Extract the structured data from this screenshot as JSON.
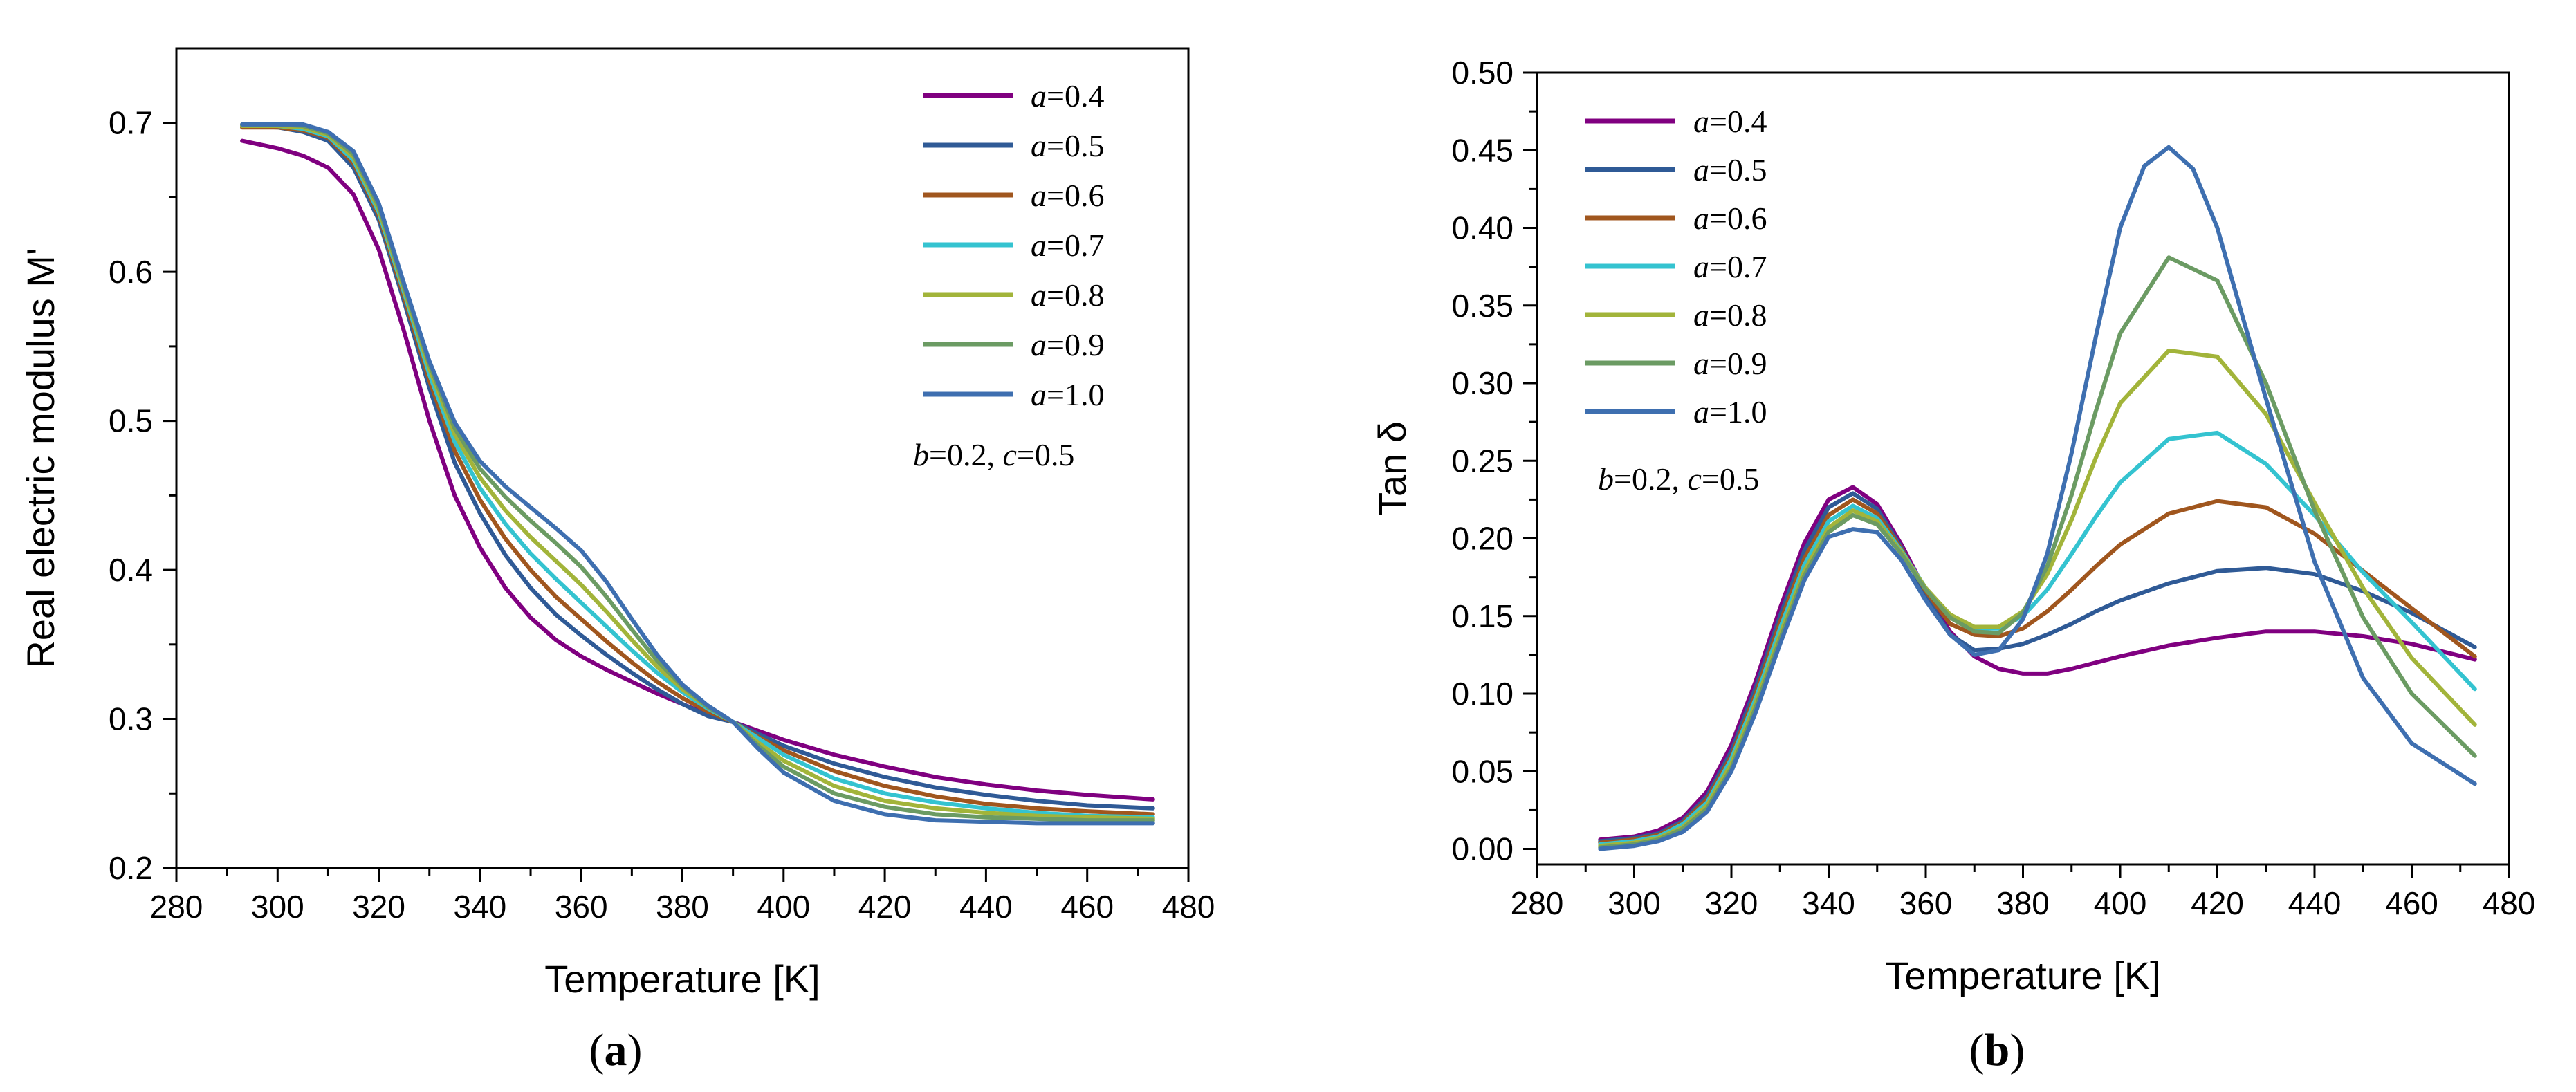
{
  "chart_data": [
    {
      "type": "line",
      "panel_label": "(a)",
      "panel_letter": "a",
      "xlabel": "Temperature [K]",
      "ylabel": "Real electric modulus M'",
      "xlim": [
        280,
        480
      ],
      "ylim": [
        0.2,
        0.75
      ],
      "xticks": [
        280,
        300,
        320,
        340,
        360,
        380,
        400,
        420,
        440,
        460,
        480
      ],
      "yticks": [
        0.2,
        0.3,
        0.4,
        0.5,
        0.6,
        0.7
      ],
      "ytick_labels": [
        "0.2",
        "0.3",
        "0.4",
        "0.5",
        "0.6",
        "0.7"
      ],
      "legend_position": "top-right",
      "legend_prefix": "a",
      "annotation": {
        "b": "0.2",
        "c": "0.5"
      },
      "series": [
        {
          "name": "a=0.4",
          "label": "0.4",
          "color": "#800080",
          "x": [
            293,
            300,
            305,
            310,
            315,
            320,
            325,
            330,
            335,
            340,
            345,
            350,
            355,
            360,
            365,
            370,
            375,
            380,
            385,
            390,
            395,
            400,
            410,
            420,
            430,
            440,
            450,
            460,
            473
          ],
          "y": [
            0.688,
            0.683,
            0.678,
            0.67,
            0.652,
            0.615,
            0.56,
            0.5,
            0.45,
            0.415,
            0.388,
            0.368,
            0.353,
            0.342,
            0.333,
            0.325,
            0.317,
            0.31,
            0.303,
            0.298,
            0.292,
            0.286,
            0.276,
            0.268,
            0.261,
            0.256,
            0.252,
            0.249,
            0.246
          ]
        },
        {
          "name": "a=0.5",
          "label": "0.5",
          "color": "#2f5a96",
          "x": [
            293,
            300,
            305,
            310,
            315,
            320,
            325,
            330,
            335,
            340,
            345,
            350,
            355,
            360,
            365,
            370,
            375,
            380,
            385,
            390,
            395,
            400,
            410,
            420,
            430,
            440,
            450,
            460,
            473
          ],
          "y": [
            0.698,
            0.697,
            0.694,
            0.688,
            0.67,
            0.635,
            0.58,
            0.522,
            0.472,
            0.438,
            0.41,
            0.388,
            0.37,
            0.356,
            0.343,
            0.331,
            0.32,
            0.31,
            0.302,
            0.298,
            0.29,
            0.282,
            0.27,
            0.261,
            0.254,
            0.249,
            0.245,
            0.242,
            0.24
          ]
        },
        {
          "name": "a=0.6",
          "label": "0.6",
          "color": "#a0561e",
          "x": [
            293,
            300,
            305,
            310,
            315,
            320,
            325,
            330,
            335,
            340,
            345,
            350,
            355,
            360,
            365,
            370,
            375,
            380,
            385,
            390,
            395,
            400,
            410,
            420,
            430,
            440,
            450,
            460,
            473
          ],
          "y": [
            0.697,
            0.697,
            0.695,
            0.69,
            0.673,
            0.638,
            0.583,
            0.527,
            0.48,
            0.447,
            0.421,
            0.4,
            0.382,
            0.367,
            0.352,
            0.338,
            0.325,
            0.314,
            0.305,
            0.298,
            0.288,
            0.279,
            0.265,
            0.255,
            0.248,
            0.243,
            0.24,
            0.238,
            0.236
          ]
        },
        {
          "name": "a=0.7",
          "label": "0.7",
          "color": "#34c3d0",
          "x": [
            293,
            300,
            305,
            310,
            315,
            320,
            325,
            330,
            335,
            340,
            345,
            350,
            355,
            360,
            365,
            370,
            375,
            380,
            385,
            390,
            395,
            400,
            410,
            420,
            430,
            440,
            450,
            460,
            473
          ],
          "y": [
            0.698,
            0.698,
            0.696,
            0.691,
            0.675,
            0.64,
            0.586,
            0.531,
            0.486,
            0.455,
            0.431,
            0.411,
            0.394,
            0.378,
            0.362,
            0.346,
            0.331,
            0.318,
            0.307,
            0.298,
            0.287,
            0.276,
            0.26,
            0.25,
            0.244,
            0.24,
            0.237,
            0.235,
            0.234
          ]
        },
        {
          "name": "a=0.8",
          "label": "0.8",
          "color": "#a2b43a",
          "x": [
            293,
            300,
            305,
            310,
            315,
            320,
            325,
            330,
            335,
            340,
            345,
            350,
            355,
            360,
            365,
            370,
            375,
            380,
            385,
            390,
            395,
            400,
            410,
            420,
            430,
            440,
            450,
            460,
            473
          ],
          "y": [
            0.698,
            0.698,
            0.697,
            0.692,
            0.677,
            0.642,
            0.588,
            0.535,
            0.491,
            0.462,
            0.44,
            0.422,
            0.406,
            0.39,
            0.372,
            0.353,
            0.335,
            0.32,
            0.308,
            0.298,
            0.284,
            0.272,
            0.255,
            0.245,
            0.24,
            0.237,
            0.235,
            0.234,
            0.233
          ]
        },
        {
          "name": "a=0.9",
          "label": "0.9",
          "color": "#6b9b63",
          "x": [
            293,
            300,
            305,
            310,
            315,
            320,
            325,
            330,
            335,
            340,
            345,
            350,
            355,
            360,
            365,
            370,
            375,
            380,
            385,
            390,
            395,
            400,
            410,
            420,
            430,
            440,
            450,
            460,
            473
          ],
          "y": [
            0.699,
            0.699,
            0.698,
            0.693,
            0.679,
            0.644,
            0.59,
            0.538,
            0.495,
            0.468,
            0.449,
            0.433,
            0.418,
            0.402,
            0.382,
            0.36,
            0.339,
            0.322,
            0.308,
            0.298,
            0.282,
            0.268,
            0.25,
            0.241,
            0.236,
            0.234,
            0.233,
            0.232,
            0.232
          ]
        },
        {
          "name": "a=1.0",
          "label": "1.0",
          "color": "#3e6fb0",
          "x": [
            293,
            300,
            305,
            310,
            315,
            320,
            325,
            330,
            335,
            340,
            345,
            350,
            355,
            360,
            365,
            370,
            375,
            380,
            385,
            390,
            395,
            400,
            410,
            420,
            430,
            440,
            450,
            460,
            473
          ],
          "y": [
            0.699,
            0.699,
            0.699,
            0.694,
            0.681,
            0.646,
            0.592,
            0.54,
            0.499,
            0.473,
            0.456,
            0.442,
            0.428,
            0.413,
            0.392,
            0.367,
            0.343,
            0.323,
            0.309,
            0.298,
            0.28,
            0.264,
            0.245,
            0.236,
            0.232,
            0.231,
            0.23,
            0.23,
            0.23
          ]
        }
      ]
    },
    {
      "type": "line",
      "panel_label": "(b)",
      "panel_letter": "b",
      "xlabel": "Temperature [K]",
      "ylabel": "Tan δ",
      "xlim": [
        280,
        480
      ],
      "ylim": [
        -0.01,
        0.5
      ],
      "xticks": [
        280,
        300,
        320,
        340,
        360,
        380,
        400,
        420,
        440,
        460,
        480
      ],
      "yticks": [
        0.0,
        0.05,
        0.1,
        0.15,
        0.2,
        0.25,
        0.3,
        0.35,
        0.4,
        0.45,
        0.5
      ],
      "ytick_labels": [
        "0.00",
        "0.05",
        "0.10",
        "0.15",
        "0.20",
        "0.25",
        "0.30",
        "0.35",
        "0.40",
        "0.45",
        "0.50"
      ],
      "legend_position": "top-left",
      "legend_prefix": "a",
      "annotation": {
        "b": "0.2",
        "c": "0.5"
      },
      "series": [
        {
          "name": "a=0.4",
          "label": "0.4",
          "color": "#800080",
          "x": [
            293,
            300,
            305,
            310,
            315,
            320,
            325,
            330,
            335,
            340,
            345,
            350,
            355,
            360,
            365,
            370,
            375,
            380,
            385,
            390,
            395,
            400,
            410,
            420,
            430,
            440,
            450,
            460,
            473
          ],
          "y": [
            0.006,
            0.008,
            0.012,
            0.02,
            0.037,
            0.067,
            0.108,
            0.155,
            0.197,
            0.225,
            0.233,
            0.222,
            0.196,
            0.166,
            0.14,
            0.124,
            0.116,
            0.113,
            0.113,
            0.116,
            0.12,
            0.124,
            0.131,
            0.136,
            0.14,
            0.14,
            0.137,
            0.132,
            0.122
          ]
        },
        {
          "name": "a=0.5",
          "label": "0.5",
          "color": "#2f5a96",
          "x": [
            293,
            300,
            305,
            310,
            315,
            320,
            325,
            330,
            335,
            340,
            345,
            350,
            355,
            360,
            365,
            370,
            375,
            380,
            385,
            390,
            395,
            400,
            410,
            420,
            430,
            440,
            450,
            460,
            473
          ],
          "y": [
            0.005,
            0.007,
            0.01,
            0.018,
            0.034,
            0.063,
            0.104,
            0.15,
            0.192,
            0.22,
            0.229,
            0.219,
            0.194,
            0.163,
            0.138,
            0.128,
            0.129,
            0.132,
            0.138,
            0.145,
            0.153,
            0.16,
            0.171,
            0.179,
            0.181,
            0.177,
            0.166,
            0.152,
            0.13
          ]
        },
        {
          "name": "a=0.6",
          "label": "0.6",
          "color": "#a0561e",
          "x": [
            293,
            300,
            305,
            310,
            315,
            320,
            325,
            330,
            335,
            340,
            345,
            350,
            355,
            360,
            365,
            370,
            375,
            380,
            385,
            390,
            395,
            400,
            410,
            420,
            430,
            440,
            450,
            460,
            473
          ],
          "y": [
            0.004,
            0.006,
            0.009,
            0.017,
            0.032,
            0.06,
            0.1,
            0.146,
            0.187,
            0.215,
            0.225,
            0.216,
            0.193,
            0.166,
            0.145,
            0.138,
            0.137,
            0.142,
            0.153,
            0.167,
            0.182,
            0.196,
            0.216,
            0.224,
            0.22,
            0.203,
            0.179,
            0.155,
            0.124
          ]
        },
        {
          "name": "a=0.7",
          "label": "0.7",
          "color": "#34c3d0",
          "x": [
            293,
            300,
            305,
            310,
            315,
            320,
            325,
            330,
            335,
            340,
            345,
            350,
            355,
            360,
            365,
            370,
            375,
            380,
            385,
            390,
            395,
            400,
            410,
            420,
            430,
            440,
            450,
            460,
            473
          ],
          "y": [
            0.003,
            0.005,
            0.008,
            0.016,
            0.03,
            0.058,
            0.097,
            0.142,
            0.183,
            0.211,
            0.221,
            0.213,
            0.192,
            0.168,
            0.15,
            0.142,
            0.142,
            0.15,
            0.167,
            0.19,
            0.214,
            0.236,
            0.264,
            0.268,
            0.248,
            0.215,
            0.178,
            0.146,
            0.103
          ]
        },
        {
          "name": "a=0.8",
          "label": "0.8",
          "color": "#a2b43a",
          "x": [
            293,
            300,
            305,
            310,
            315,
            320,
            325,
            330,
            335,
            340,
            345,
            350,
            355,
            360,
            365,
            370,
            375,
            380,
            385,
            390,
            395,
            400,
            410,
            420,
            430,
            440,
            450,
            460,
            473
          ],
          "y": [
            0.002,
            0.004,
            0.007,
            0.014,
            0.028,
            0.055,
            0.094,
            0.138,
            0.179,
            0.207,
            0.218,
            0.211,
            0.191,
            0.168,
            0.151,
            0.143,
            0.143,
            0.153,
            0.177,
            0.212,
            0.252,
            0.287,
            0.321,
            0.317,
            0.28,
            0.223,
            0.168,
            0.123,
            0.08
          ]
        },
        {
          "name": "a=0.9",
          "label": "0.9",
          "color": "#6b9b63",
          "x": [
            293,
            300,
            305,
            310,
            315,
            320,
            325,
            330,
            335,
            340,
            345,
            350,
            355,
            360,
            365,
            370,
            375,
            380,
            385,
            390,
            395,
            400,
            410,
            420,
            430,
            440,
            450,
            460,
            473
          ],
          "y": [
            0.001,
            0.003,
            0.006,
            0.013,
            0.026,
            0.052,
            0.091,
            0.135,
            0.176,
            0.204,
            0.215,
            0.209,
            0.19,
            0.167,
            0.149,
            0.14,
            0.139,
            0.152,
            0.182,
            0.228,
            0.282,
            0.332,
            0.381,
            0.366,
            0.3,
            0.218,
            0.149,
            0.1,
            0.06
          ]
        },
        {
          "name": "a=1.0",
          "label": "1.0",
          "color": "#3e6fb0",
          "x": [
            293,
            300,
            305,
            310,
            315,
            320,
            325,
            330,
            335,
            340,
            345,
            350,
            355,
            360,
            365,
            370,
            375,
            380,
            385,
            390,
            395,
            400,
            405,
            410,
            415,
            420,
            430,
            440,
            450,
            460,
            473
          ],
          "y": [
            0.0,
            0.002,
            0.005,
            0.011,
            0.024,
            0.05,
            0.088,
            0.132,
            0.173,
            0.201,
            0.206,
            0.204,
            0.186,
            0.16,
            0.138,
            0.125,
            0.128,
            0.148,
            0.19,
            0.255,
            0.33,
            0.4,
            0.44,
            0.452,
            0.438,
            0.4,
            0.29,
            0.185,
            0.11,
            0.068,
            0.042
          ]
        }
      ]
    }
  ]
}
